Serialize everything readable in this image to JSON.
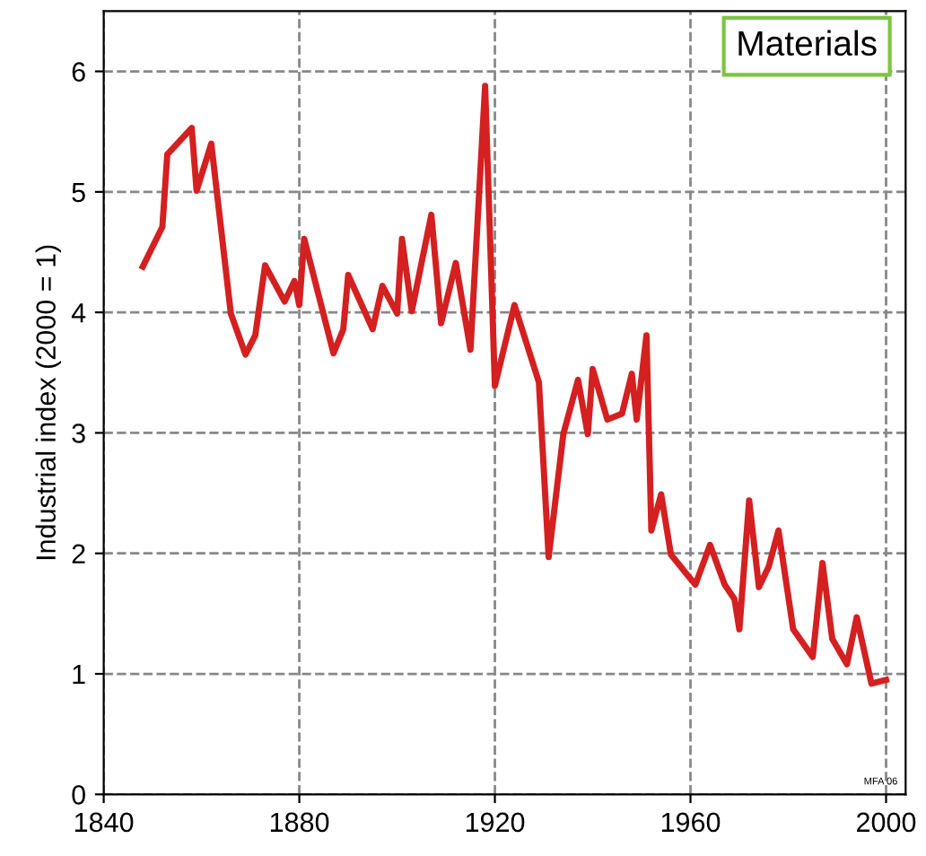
{
  "chart_data": {
    "type": "line",
    "title": "Materials",
    "ylabel": "Industrial index (2000 = 1)",
    "x": [
      1848,
      1852,
      1853,
      1858,
      1859,
      1862,
      1866,
      1869,
      1871,
      1873,
      1877,
      1879,
      1880,
      1881,
      1887,
      1889,
      1890,
      1895,
      1897,
      1900,
      1901,
      1903,
      1907,
      1909,
      1912,
      1915,
      1918,
      1920,
      1924,
      1929,
      1931,
      1934,
      1937,
      1939,
      1940,
      1943,
      1946,
      1948,
      1949,
      1951,
      1952,
      1954,
      1956,
      1961,
      1964,
      1967,
      1969,
      1970,
      1972,
      1974,
      1976,
      1978,
      1981,
      1985,
      1987,
      1989,
      1992,
      1994,
      1997,
      2000
    ],
    "series": [
      {
        "color": "#d42020",
        "values": [
          4.38,
          4.71,
          5.31,
          5.53,
          5.01,
          5.4,
          3.99,
          3.65,
          3.81,
          4.39,
          4.09,
          4.26,
          4.06,
          4.61,
          3.66,
          3.86,
          4.31,
          3.86,
          4.22,
          3.99,
          4.61,
          4.01,
          4.81,
          3.91,
          4.41,
          3.69,
          5.88,
          3.39,
          4.06,
          3.42,
          1.97,
          2.99,
          3.44,
          2.99,
          3.53,
          3.11,
          3.16,
          3.49,
          3.11,
          3.81,
          2.19,
          2.49,
          1.99,
          1.74,
          2.07,
          1.74,
          1.62,
          1.37,
          2.44,
          1.72,
          1.89,
          2.19,
          1.37,
          1.14,
          1.92,
          1.29,
          1.08,
          1.47,
          0.92,
          0.95
        ]
      }
    ],
    "xlim": [
      1840,
      2004
    ],
    "ylim": [
      0,
      6.5
    ],
    "xticks": [
      1840,
      1880,
      1920,
      1960,
      2000
    ],
    "yticks": [
      0,
      1,
      2,
      3,
      4,
      5,
      6
    ],
    "grid": true,
    "line_style": "solid",
    "marker": "none",
    "legend": false,
    "annotations": [
      "MFA 06"
    ]
  }
}
